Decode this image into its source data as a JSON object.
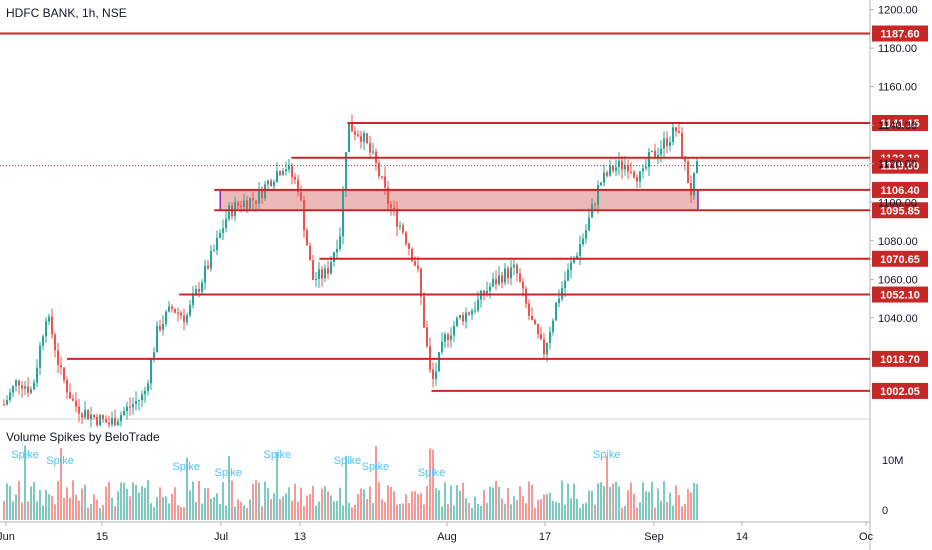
{
  "header": {
    "title": "HDFC BANK, 1h, NSE"
  },
  "indicator": {
    "title": "Volume Spikes by BeloTrade",
    "spike_label": "Spike"
  },
  "colors": {
    "up": "#26a69a",
    "down": "#ef5350",
    "level": "#c62828",
    "zone_fill": "#e8a6a6",
    "zone_border": "#8e24aa",
    "spike_text": "#4fc3f7",
    "axis_text": "#131722",
    "grid": "#e0e3eb"
  },
  "chart_data": {
    "type": "candlestick",
    "price_axis": {
      "ticks": [
        "1200.00",
        "1180.00",
        "1160.00",
        "1140.00",
        "1120.00",
        "1100.00",
        "1080.00",
        "1060.00",
        "1040.00"
      ],
      "range": [
        988,
        1205
      ]
    },
    "time_axis": {
      "ticks": [
        "Jun",
        "15",
        "Jul",
        "13",
        "Aug",
        "17",
        "Sep",
        "14",
        "Oc"
      ]
    },
    "volume_axis": {
      "ticks": [
        "10M",
        "0"
      ]
    },
    "levels": [
      {
        "label": "1187.60",
        "value": 1187.6,
        "x_from": "Jun"
      },
      {
        "label": "1141.15",
        "value": 1141.15,
        "x_from": "Jul 20"
      },
      {
        "label": "1123.10",
        "value": 1123.1,
        "x_from": "Jul 12"
      },
      {
        "label": "1106.40",
        "value": 1106.4,
        "x_from": "Jul 1"
      },
      {
        "label": "1095.85",
        "value": 1095.85,
        "x_from": "Jul 1"
      },
      {
        "label": "1070.65",
        "value": 1070.65,
        "x_from": "Jul 16"
      },
      {
        "label": "1052.10",
        "value": 1052.1,
        "x_from": "Jun 26"
      },
      {
        "label": "1018.70",
        "value": 1018.7,
        "x_from": "Jun 10"
      },
      {
        "label": "1002.05",
        "value": 1002.05,
        "x_from": "Aug 1"
      }
    ],
    "current_price": {
      "label": "1119.00",
      "value": 1119.0
    },
    "zone": {
      "from": 1095.85,
      "to": 1106.4
    },
    "price_path": [
      [
        "Jun",
        995
      ],
      [
        "Jun 3",
        1008
      ],
      [
        "Jun 5",
        1002
      ],
      [
        "Jun 7",
        1042
      ],
      [
        "Jun 8",
        1030
      ],
      [
        "Jun 9",
        1012
      ],
      [
        "Jun 11",
        995
      ],
      [
        "Jun 13",
        990
      ],
      [
        "Jun 16",
        985
      ],
      [
        "Jun 19",
        994
      ],
      [
        "Jun 21",
        1000
      ],
      [
        "Jun 23",
        1035
      ],
      [
        "Jun 25",
        1045
      ],
      [
        "Jun 27",
        1040
      ],
      [
        "Jun 29",
        1058
      ],
      [
        "Jul 1",
        1075
      ],
      [
        "Jul 3",
        1095
      ],
      [
        "Jul 5",
        1100
      ],
      [
        "Jul 7",
        1102
      ],
      [
        "Jul 9",
        1112
      ],
      [
        "Jul 11",
        1120
      ],
      [
        "Jul 13",
        1108
      ],
      [
        "Jul 15",
        1060
      ],
      [
        "Jul 17",
        1063
      ],
      [
        "Jul 19",
        1085
      ],
      [
        "Jul 20",
        1140
      ],
      [
        "Jul 22",
        1135
      ],
      [
        "Jul 24",
        1120
      ],
      [
        "Jul 26",
        1098
      ],
      [
        "Jul 28",
        1085
      ],
      [
        "Jul 30",
        1065
      ],
      [
        "Aug 1",
        1005
      ],
      [
        "Aug 3",
        1030
      ],
      [
        "Aug 5",
        1040
      ],
      [
        "Aug 7",
        1045
      ],
      [
        "Aug 9",
        1055
      ],
      [
        "Aug 11",
        1062
      ],
      [
        "Aug 13",
        1065
      ],
      [
        "Aug 15",
        1040
      ],
      [
        "Aug 17",
        1022
      ],
      [
        "Aug 19",
        1050
      ],
      [
        "Aug 21",
        1068
      ],
      [
        "Aug 23",
        1085
      ],
      [
        "Aug 25",
        1110
      ],
      [
        "Aug 27",
        1118
      ],
      [
        "Aug 29",
        1120
      ],
      [
        "Aug 31",
        1112
      ],
      [
        "Sep 1",
        1122
      ],
      [
        "Sep 3",
        1130
      ],
      [
        "Sep 5",
        1138
      ],
      [
        "Sep 7",
        1105
      ],
      [
        "Sep 8",
        1119
      ]
    ],
    "spikes": [
      {
        "x": "Jun 4",
        "label": "Spike"
      },
      {
        "x": "Jun 9",
        "label": "Spike"
      },
      {
        "x": "Jun 27",
        "label": "Spike"
      },
      {
        "x": "Jul 3",
        "label": "Spike"
      },
      {
        "x": "Jul 10",
        "label": "Spike"
      },
      {
        "x": "Jul 20",
        "label": "Spike"
      },
      {
        "x": "Jul 24",
        "label": "Spike"
      },
      {
        "x": "Aug 1",
        "label": "Spike"
      },
      {
        "x": "Aug 26",
        "label": "Spike"
      }
    ]
  }
}
